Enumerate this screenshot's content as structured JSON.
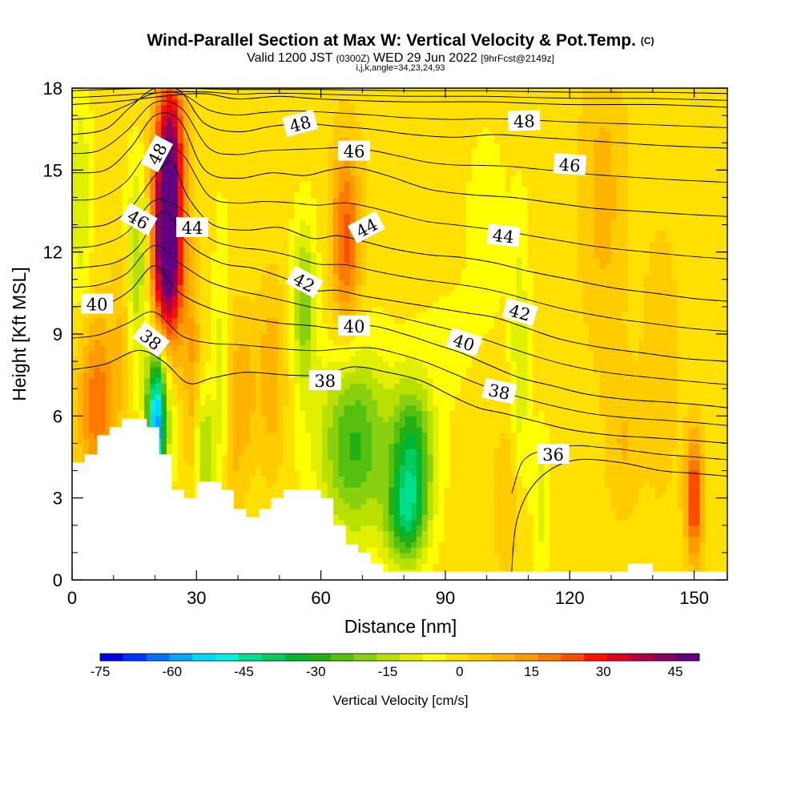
{
  "chart_data": {
    "type": "heatmap",
    "title": "Wind-Parallel Section at Max W: Vertical Velocity & Pot.Temp.",
    "title_mark": "(C)",
    "subtitle": {
      "valid": "Valid 1200 JST",
      "utc": "(0300Z)",
      "date": "WED 29 Jun 2022",
      "forecast": "[9hrFcst@2149z]",
      "indices": "i,j,k,angle=34,23,24,93"
    },
    "xlabel": "Distance [nm]",
    "ylabel": "Height [Kft MSL]",
    "xlim": [
      0,
      158
    ],
    "ylim": [
      0,
      18
    ],
    "xticks": [
      0,
      30,
      60,
      90,
      120,
      150
    ],
    "yticks": [
      0,
      3,
      6,
      9,
      12,
      15,
      18
    ],
    "grid": false,
    "colorbar": {
      "label": "Vertical Velocity [cm/s]",
      "tick_values": [
        -75,
        -60,
        -45,
        -30,
        -15,
        0,
        15,
        30,
        45
      ],
      "tick_labels": [
        "-75",
        "-60",
        "-45",
        "-30",
        "-15",
        "0",
        "15",
        "30",
        "45"
      ],
      "levels": [
        -75,
        -70,
        -65,
        -60,
        -55,
        -50,
        -45,
        -40,
        -35,
        -30,
        -25,
        -20,
        -15,
        -10,
        -5,
        0,
        5,
        10,
        15,
        20,
        25,
        30,
        35,
        40,
        45,
        50
      ],
      "colors": [
        "#0000ee",
        "#0033ff",
        "#0070ff",
        "#00a6ff",
        "#00d8ff",
        "#00f0e0",
        "#00e08c",
        "#00cc60",
        "#00b830",
        "#22b014",
        "#55c010",
        "#88d010",
        "#b8e000",
        "#e0f000",
        "#ffff00",
        "#ffe000",
        "#ffcc00",
        "#ffb400",
        "#ff9a00",
        "#ff7800",
        "#ff4c00",
        "#ff1000",
        "#e00020",
        "#b00040",
        "#8a0060",
        "#600080"
      ]
    },
    "background_value": 2,
    "velocity_features": [
      {
        "x": 23,
        "y": 13.0,
        "sx": 2.6,
        "sy": 2.8,
        "value": 58
      },
      {
        "x": 24,
        "y": 16.5,
        "sx": 2.2,
        "sy": 1.6,
        "value": 20
      },
      {
        "x": 22.5,
        "y": 10.5,
        "sx": 3.0,
        "sy": 2.0,
        "value": 14
      },
      {
        "x": 6,
        "y": 6.5,
        "sx": 3.2,
        "sy": 2.2,
        "value": 22
      },
      {
        "x": 16,
        "y": 11.5,
        "sx": 2.2,
        "sy": 2.6,
        "value": -18
      },
      {
        "x": 20,
        "y": 5.5,
        "sx": 1.5,
        "sy": 1.8,
        "value": -48
      },
      {
        "x": 21.5,
        "y": 6.8,
        "sx": 2.0,
        "sy": 2.2,
        "value": -22
      },
      {
        "x": 2,
        "y": 14,
        "sx": 1.8,
        "sy": 2.8,
        "value": -12
      },
      {
        "x": 12,
        "y": 9.5,
        "sx": 1.6,
        "sy": 2.5,
        "value": 8
      },
      {
        "x": 29,
        "y": 7.5,
        "sx": 1.4,
        "sy": 3.0,
        "value": 12
      },
      {
        "x": 32,
        "y": 4.8,
        "sx": 1.8,
        "sy": 1.5,
        "value": -18
      },
      {
        "x": 36,
        "y": 8.5,
        "sx": 1.4,
        "sy": 3.5,
        "value": -8
      },
      {
        "x": 39,
        "y": 6.0,
        "sx": 1.3,
        "sy": 2.8,
        "value": 10
      },
      {
        "x": 42,
        "y": 6.8,
        "sx": 1.5,
        "sy": 2.2,
        "value": 10
      },
      {
        "x": 48,
        "y": 7.5,
        "sx": 2.5,
        "sy": 2.5,
        "value": 12
      },
      {
        "x": 56,
        "y": 10,
        "sx": 2.0,
        "sy": 2.2,
        "value": -20
      },
      {
        "x": 66,
        "y": 12.5,
        "sx": 2.5,
        "sy": 2.5,
        "value": 25
      },
      {
        "x": 68,
        "y": 5,
        "sx": 6,
        "sy": 2.4,
        "value": -28
      },
      {
        "x": 82,
        "y": 4.3,
        "sx": 3.5,
        "sy": 2.0,
        "value": -35
      },
      {
        "x": 80,
        "y": 2.2,
        "sx": 3.2,
        "sy": 1.2,
        "value": -22
      },
      {
        "x": 100,
        "y": 13,
        "sx": 4.0,
        "sy": 3.0,
        "value": -4
      },
      {
        "x": 90,
        "y": 8.5,
        "sx": 5,
        "sy": 2.0,
        "value": -3
      },
      {
        "x": 108,
        "y": 8,
        "sx": 1.5,
        "sy": 3.5,
        "value": -12
      },
      {
        "x": 113,
        "y": 3,
        "sx": 1.4,
        "sy": 1.8,
        "value": -10
      },
      {
        "x": 128,
        "y": 14,
        "sx": 4,
        "sy": 4,
        "value": 10
      },
      {
        "x": 142,
        "y": 8,
        "sx": 3,
        "sy": 3.5,
        "value": 8
      },
      {
        "x": 150,
        "y": 3,
        "sx": 1.5,
        "sy": 1.6,
        "value": 30
      },
      {
        "x": 105,
        "y": 3,
        "sx": 2.5,
        "sy": 2,
        "value": 8
      },
      {
        "x": 133,
        "y": 5,
        "sx": 3,
        "sy": 2,
        "value": 8
      }
    ],
    "terrain_profile": [
      [
        0,
        4.3
      ],
      [
        3,
        4.3
      ],
      [
        3,
        4.6
      ],
      [
        6,
        4.6
      ],
      [
        6,
        5.3
      ],
      [
        9,
        5.3
      ],
      [
        9,
        5.6
      ],
      [
        12,
        5.6
      ],
      [
        12,
        5.9
      ],
      [
        18,
        5.9
      ],
      [
        18,
        5.6
      ],
      [
        21,
        5.6
      ],
      [
        21,
        4.6
      ],
      [
        24,
        4.6
      ],
      [
        24,
        3.3
      ],
      [
        27,
        3.3
      ],
      [
        27,
        3.0
      ],
      [
        30,
        3.0
      ],
      [
        30,
        3.6
      ],
      [
        36,
        3.6
      ],
      [
        36,
        3.3
      ],
      [
        39,
        3.3
      ],
      [
        39,
        2.6
      ],
      [
        42,
        2.6
      ],
      [
        42,
        2.3
      ],
      [
        45,
        2.3
      ],
      [
        45,
        2.6
      ],
      [
        48,
        2.6
      ],
      [
        48,
        3.0
      ],
      [
        51,
        3.0
      ],
      [
        51,
        3.3
      ],
      [
        60,
        3.3
      ],
      [
        60,
        3.0
      ],
      [
        63,
        3.0
      ],
      [
        63,
        2.0
      ],
      [
        66,
        2.0
      ],
      [
        66,
        1.3
      ],
      [
        69,
        1.3
      ],
      [
        69,
        1.0
      ],
      [
        72,
        1.0
      ],
      [
        72,
        0.6
      ],
      [
        75,
        0.6
      ],
      [
        75,
        0.3
      ],
      [
        134,
        0.3
      ],
      [
        134,
        0.6
      ],
      [
        140,
        0.6
      ],
      [
        140,
        0.3
      ],
      [
        158,
        0.3
      ]
    ],
    "theta_contours": [
      {
        "level": 36,
        "points": [
          [
            106,
            0.3
          ],
          [
            107,
            2.0
          ],
          [
            110,
            3.2
          ],
          [
            115,
            4.0
          ],
          [
            122,
            4.4
          ],
          [
            132,
            4.3
          ],
          [
            142,
            4.0
          ],
          [
            150,
            3.9
          ],
          [
            158,
            3.8
          ]
        ]
      },
      {
        "level": 38,
        "points": [
          [
            0,
            7.7
          ],
          [
            8,
            7.9
          ],
          [
            16,
            8.4
          ],
          [
            22,
            8.0
          ],
          [
            28,
            7.2
          ],
          [
            34,
            7.4
          ],
          [
            42,
            7.6
          ],
          [
            52,
            7.5
          ],
          [
            60,
            7.5
          ],
          [
            68,
            7.8
          ],
          [
            76,
            7.6
          ],
          [
            84,
            7.3
          ],
          [
            92,
            6.7
          ],
          [
            98,
            6.3
          ],
          [
            104,
            6.1
          ],
          [
            112,
            5.8
          ],
          [
            120,
            5.5
          ],
          [
            130,
            5.3
          ],
          [
            140,
            5.2
          ],
          [
            150,
            5.1
          ],
          [
            158,
            5.0
          ]
        ]
      },
      {
        "level": 40,
        "points": [
          [
            0,
            10.0
          ],
          [
            8,
            10.1
          ],
          [
            14,
            10.6
          ],
          [
            20,
            11.5
          ],
          [
            26,
            10.5
          ],
          [
            34,
            9.9
          ],
          [
            42,
            9.6
          ],
          [
            50,
            9.4
          ],
          [
            58,
            9.3
          ],
          [
            64,
            9.2
          ],
          [
            72,
            9.3
          ],
          [
            80,
            9.0
          ],
          [
            88,
            8.6
          ],
          [
            94,
            8.3
          ],
          [
            100,
            7.9
          ],
          [
            108,
            7.4
          ],
          [
            116,
            7.1
          ],
          [
            124,
            6.8
          ],
          [
            134,
            6.6
          ],
          [
            144,
            6.5
          ],
          [
            152,
            6.4
          ],
          [
            158,
            6.3
          ]
        ]
      },
      {
        "level": 42,
        "points": [
          [
            0,
            11.4
          ],
          [
            10,
            11.6
          ],
          [
            16,
            12.2
          ],
          [
            22,
            13.5
          ],
          [
            28,
            12.3
          ],
          [
            36,
            11.6
          ],
          [
            44,
            11.4
          ],
          [
            52,
            11.0
          ],
          [
            58,
            10.6
          ],
          [
            64,
            10.6
          ],
          [
            70,
            10.4
          ],
          [
            78,
            10.2
          ],
          [
            86,
            10.0
          ],
          [
            94,
            9.8
          ],
          [
            102,
            9.6
          ],
          [
            110,
            9.2
          ],
          [
            118,
            8.8
          ],
          [
            128,
            8.5
          ],
          [
            138,
            8.3
          ],
          [
            148,
            8.1
          ],
          [
            158,
            8.0
          ]
        ]
      },
      {
        "level": 44,
        "points": [
          [
            0,
            12.9
          ],
          [
            8,
            13.0
          ],
          [
            14,
            13.6
          ],
          [
            20,
            14.8
          ],
          [
            24,
            15.3
          ],
          [
            28,
            14.0
          ],
          [
            34,
            13.0
          ],
          [
            42,
            12.8
          ],
          [
            50,
            12.9
          ],
          [
            58,
            12.5
          ],
          [
            64,
            12.6
          ],
          [
            70,
            12.4
          ],
          [
            78,
            12.1
          ],
          [
            86,
            11.9
          ],
          [
            94,
            11.8
          ],
          [
            102,
            11.6
          ],
          [
            110,
            11.3
          ],
          [
            120,
            11.0
          ],
          [
            130,
            10.7
          ],
          [
            140,
            10.5
          ],
          [
            150,
            10.3
          ],
          [
            158,
            10.2
          ]
        ]
      },
      {
        "level": 46,
        "points": [
          [
            0,
            14.9
          ],
          [
            8,
            15.0
          ],
          [
            14,
            15.8
          ],
          [
            20,
            17.0
          ],
          [
            26,
            16.8
          ],
          [
            32,
            15.0
          ],
          [
            40,
            14.7
          ],
          [
            48,
            14.9
          ],
          [
            56,
            14.8
          ],
          [
            62,
            15.0
          ],
          [
            68,
            15.1
          ],
          [
            76,
            14.8
          ],
          [
            86,
            14.3
          ],
          [
            96,
            14.1
          ],
          [
            106,
            14.0
          ],
          [
            116,
            13.8
          ],
          [
            126,
            13.6
          ],
          [
            136,
            13.5
          ],
          [
            146,
            13.4
          ],
          [
            158,
            13.3
          ]
        ]
      },
      {
        "level": 48,
        "points": [
          [
            0,
            16.3
          ],
          [
            8,
            16.5
          ],
          [
            14,
            17.3
          ],
          [
            20,
            18.0
          ],
          [
            26,
            17.9
          ],
          [
            32,
            16.7
          ],
          [
            40,
            16.4
          ],
          [
            48,
            16.6
          ],
          [
            56,
            16.7
          ],
          [
            64,
            16.6
          ],
          [
            72,
            16.5
          ],
          [
            82,
            16.3
          ],
          [
            92,
            16.2
          ],
          [
            102,
            16.3
          ],
          [
            112,
            16.2
          ],
          [
            122,
            16.1
          ],
          [
            132,
            16.0
          ],
          [
            142,
            15.9
          ],
          [
            158,
            15.8
          ]
        ]
      },
      {
        "level": 50,
        "points": [
          [
            0,
            17.4
          ],
          [
            10,
            17.5
          ],
          [
            30,
            17.8
          ],
          [
            40,
            17.6
          ],
          [
            50,
            17.7
          ],
          [
            60,
            17.6
          ],
          [
            80,
            17.5
          ],
          [
            100,
            17.5
          ],
          [
            120,
            17.4
          ],
          [
            140,
            17.4
          ],
          [
            158,
            17.3
          ]
        ]
      },
      {
        "level": 52,
        "points": [
          [
            0,
            17.9
          ],
          [
            20,
            18.0
          ],
          [
            40,
            17.95
          ],
          [
            60,
            17.95
          ],
          [
            80,
            17.9
          ],
          [
            100,
            17.9
          ],
          [
            120,
            17.85
          ],
          [
            140,
            17.85
          ],
          [
            158,
            17.8
          ]
        ]
      }
    ],
    "contour_labels": [
      {
        "text": "48",
        "x": 20.5,
        "y": 15.6,
        "angle": -62
      },
      {
        "text": "48",
        "x": 55,
        "y": 16.7,
        "angle": -15
      },
      {
        "text": "48",
        "x": 109,
        "y": 16.8,
        "angle": -2
      },
      {
        "text": "46",
        "x": 16,
        "y": 13.2,
        "angle": 30
      },
      {
        "text": "46",
        "x": 68,
        "y": 15.7,
        "angle": 0
      },
      {
        "text": "46",
        "x": 120,
        "y": 15.2,
        "angle": 4
      },
      {
        "text": "44",
        "x": 29,
        "y": 12.9,
        "angle": 0
      },
      {
        "text": "44",
        "x": 71,
        "y": 12.9,
        "angle": -28
      },
      {
        "text": "44",
        "x": 104,
        "y": 12.6,
        "angle": 6
      },
      {
        "text": "42",
        "x": 56,
        "y": 10.9,
        "angle": 28
      },
      {
        "text": "42",
        "x": 108,
        "y": 9.8,
        "angle": 16
      },
      {
        "text": "40",
        "x": 6,
        "y": 10.1,
        "angle": 0
      },
      {
        "text": "40",
        "x": 68,
        "y": 9.3,
        "angle": 0
      },
      {
        "text": "40",
        "x": 94.5,
        "y": 8.7,
        "angle": 18
      },
      {
        "text": "38",
        "x": 19,
        "y": 8.8,
        "angle": 38
      },
      {
        "text": "38",
        "x": 61,
        "y": 7.3,
        "angle": 0
      },
      {
        "text": "38",
        "x": 103,
        "y": 6.9,
        "angle": 12
      },
      {
        "text": "36",
        "x": 116,
        "y": 4.6,
        "angle": 0
      }
    ]
  }
}
